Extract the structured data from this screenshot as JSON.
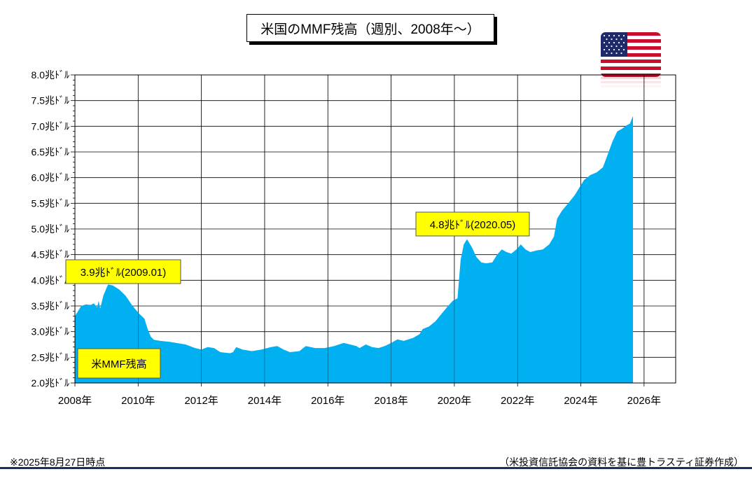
{
  "title": "米国のMMF残高（週別、2008年〜）",
  "footnote_left": "※2025年8月27日時点",
  "footnote_right": "（米投資信託協会の資料を基に豊トラスティ証券作成）",
  "colors": {
    "fill": "#00b0f0",
    "grid": "#000000",
    "callout_bg": "#ffff00",
    "footnote_rule": "#16325c"
  },
  "flag_icon": "us-flag-icon",
  "chart_data": {
    "type": "area",
    "series_name": "米MMF残高",
    "ylim": [
      2.0,
      8.0
    ],
    "y_ticks": [
      {
        "v": 2.0,
        "label": "2.0兆ﾄﾞﾙ"
      },
      {
        "v": 2.5,
        "label": "2.5兆ﾄﾞﾙ"
      },
      {
        "v": 3.0,
        "label": "3.0兆ﾄﾞﾙ"
      },
      {
        "v": 3.5,
        "label": "3.5兆ﾄﾞﾙ"
      },
      {
        "v": 4.0,
        "label": "4.0兆ﾄﾞﾙ"
      },
      {
        "v": 4.5,
        "label": "4.5兆ﾄﾞﾙ"
      },
      {
        "v": 5.0,
        "label": "5.0兆ﾄﾞﾙ"
      },
      {
        "v": 5.5,
        "label": "5.5兆ﾄﾞﾙ"
      },
      {
        "v": 6.0,
        "label": "6.0兆ﾄﾞﾙ"
      },
      {
        "v": 6.5,
        "label": "6.5兆ﾄﾞﾙ"
      },
      {
        "v": 7.0,
        "label": "7.0兆ﾄﾞﾙ"
      },
      {
        "v": 7.5,
        "label": "7.5兆ﾄﾞﾙ"
      },
      {
        "v": 8.0,
        "label": "8.0兆ﾄﾞﾙ"
      }
    ],
    "xlim": [
      2008.0,
      2027.0
    ],
    "x_ticks": [
      {
        "v": 2008,
        "label": "2008年"
      },
      {
        "v": 2010,
        "label": "2010年"
      },
      {
        "v": 2012,
        "label": "2012年"
      },
      {
        "v": 2014,
        "label": "2014年"
      },
      {
        "v": 2016,
        "label": "2016年"
      },
      {
        "v": 2018,
        "label": "2018年"
      },
      {
        "v": 2020,
        "label": "2020年"
      },
      {
        "v": 2022,
        "label": "2022年"
      },
      {
        "v": 2024,
        "label": "2024年"
      },
      {
        "v": 2026,
        "label": "2026年"
      }
    ],
    "points": [
      [
        2008.0,
        3.3
      ],
      [
        2008.1,
        3.4
      ],
      [
        2008.2,
        3.5
      ],
      [
        2008.35,
        3.53
      ],
      [
        2008.5,
        3.52
      ],
      [
        2008.6,
        3.55
      ],
      [
        2008.7,
        3.47
      ],
      [
        2008.75,
        3.6
      ],
      [
        2008.8,
        3.45
      ],
      [
        2008.9,
        3.7
      ],
      [
        2009.0,
        3.85
      ],
      [
        2009.05,
        3.92
      ],
      [
        2009.2,
        3.9
      ],
      [
        2009.4,
        3.82
      ],
      [
        2009.6,
        3.7
      ],
      [
        2009.8,
        3.52
      ],
      [
        2010.0,
        3.37
      ],
      [
        2010.2,
        3.25
      ],
      [
        2010.3,
        3.05
      ],
      [
        2010.4,
        2.9
      ],
      [
        2010.5,
        2.84
      ],
      [
        2010.7,
        2.82
      ],
      [
        2011.0,
        2.8
      ],
      [
        2011.3,
        2.77
      ],
      [
        2011.5,
        2.75
      ],
      [
        2011.8,
        2.68
      ],
      [
        2012.0,
        2.65
      ],
      [
        2012.2,
        2.7
      ],
      [
        2012.4,
        2.68
      ],
      [
        2012.6,
        2.6
      ],
      [
        2012.9,
        2.58
      ],
      [
        2013.0,
        2.6
      ],
      [
        2013.1,
        2.7
      ],
      [
        2013.3,
        2.65
      ],
      [
        2013.6,
        2.62
      ],
      [
        2013.9,
        2.65
      ],
      [
        2014.2,
        2.7
      ],
      [
        2014.4,
        2.72
      ],
      [
        2014.6,
        2.65
      ],
      [
        2014.8,
        2.6
      ],
      [
        2015.1,
        2.62
      ],
      [
        2015.3,
        2.72
      ],
      [
        2015.6,
        2.68
      ],
      [
        2015.9,
        2.68
      ],
      [
        2016.2,
        2.72
      ],
      [
        2016.5,
        2.78
      ],
      [
        2016.7,
        2.75
      ],
      [
        2016.9,
        2.72
      ],
      [
        2017.0,
        2.68
      ],
      [
        2017.2,
        2.75
      ],
      [
        2017.4,
        2.7
      ],
      [
        2017.6,
        2.68
      ],
      [
        2017.8,
        2.72
      ],
      [
        2018.0,
        2.78
      ],
      [
        2018.2,
        2.85
      ],
      [
        2018.4,
        2.82
      ],
      [
        2018.7,
        2.88
      ],
      [
        2018.9,
        2.95
      ],
      [
        2019.0,
        3.05
      ],
      [
        2019.2,
        3.1
      ],
      [
        2019.4,
        3.2
      ],
      [
        2019.6,
        3.35
      ],
      [
        2019.8,
        3.5
      ],
      [
        2019.95,
        3.6
      ],
      [
        2020.1,
        3.65
      ],
      [
        2020.2,
        4.4
      ],
      [
        2020.3,
        4.7
      ],
      [
        2020.4,
        4.8
      ],
      [
        2020.55,
        4.65
      ],
      [
        2020.7,
        4.45
      ],
      [
        2020.85,
        4.35
      ],
      [
        2021.0,
        4.33
      ],
      [
        2021.2,
        4.35
      ],
      [
        2021.35,
        4.5
      ],
      [
        2021.5,
        4.6
      ],
      [
        2021.65,
        4.55
      ],
      [
        2021.8,
        4.52
      ],
      [
        2022.0,
        4.62
      ],
      [
        2022.1,
        4.7
      ],
      [
        2022.25,
        4.6
      ],
      [
        2022.4,
        4.55
      ],
      [
        2022.6,
        4.58
      ],
      [
        2022.8,
        4.6
      ],
      [
        2023.0,
        4.7
      ],
      [
        2023.15,
        4.85
      ],
      [
        2023.25,
        5.2
      ],
      [
        2023.4,
        5.35
      ],
      [
        2023.6,
        5.5
      ],
      [
        2023.8,
        5.65
      ],
      [
        2023.95,
        5.8
      ],
      [
        2024.1,
        5.95
      ],
      [
        2024.3,
        6.05
      ],
      [
        2024.5,
        6.1
      ],
      [
        2024.7,
        6.2
      ],
      [
        2024.85,
        6.45
      ],
      [
        2025.0,
        6.7
      ],
      [
        2025.15,
        6.9
      ],
      [
        2025.3,
        6.95
      ],
      [
        2025.45,
        7.02
      ],
      [
        2025.55,
        7.05
      ],
      [
        2025.65,
        7.2
      ]
    ],
    "annotations": [
      {
        "label": "3.9兆ﾄﾞﾙ(2009.01)",
        "x": 2009.0,
        "y": 3.9
      },
      {
        "label": "4.8兆ﾄﾞﾙ(2020.05)",
        "x": 2020.4,
        "y": 4.8
      }
    ]
  }
}
